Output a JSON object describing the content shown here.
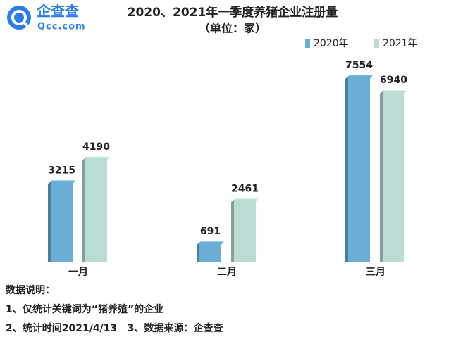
{
  "logo": {
    "name": "企查查",
    "site": "Qcc.com"
  },
  "chart_data": {
    "type": "bar3d",
    "title": "2020、2021年一季度养猪企业注册量",
    "subtitle": "（单位：家）",
    "categories": [
      "一月",
      "二月",
      "三月"
    ],
    "series": [
      {
        "name": "2020年",
        "color": "#6aaed6",
        "values": [
          3215,
          691,
          7554
        ]
      },
      {
        "name": "2021年",
        "color": "#b9ddd4",
        "values": [
          4190,
          2461,
          6940
        ]
      }
    ],
    "legend": "top-right"
  },
  "notes": {
    "title": "数据说明：",
    "lines": [
      "1、仅统计关键词为“猪养殖”的企业",
      "2、统计时间2021/4/13   3、数据来源：企查查"
    ]
  }
}
